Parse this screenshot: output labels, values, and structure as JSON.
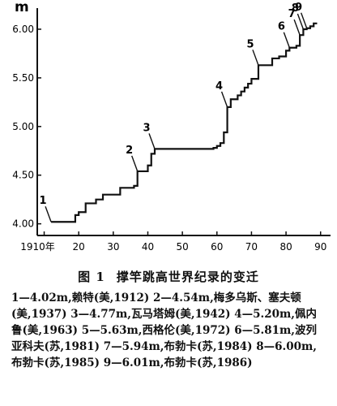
{
  "chart_data": {
    "type": "line",
    "step": true,
    "ylabel": "m",
    "xlabel": "",
    "x_tick_labels": [
      "1910年",
      "20",
      "30",
      "40",
      "50",
      "60",
      "70",
      "80",
      "90"
    ],
    "x_ticks": [
      10,
      20,
      30,
      40,
      50,
      60,
      70,
      80,
      90
    ],
    "y_tick_labels": [
      "4.00",
      "4.50",
      "5.00",
      "5.50",
      "6.00"
    ],
    "y_ticks": [
      4.0,
      4.5,
      5.0,
      5.5,
      6.0
    ],
    "xlim": [
      1908,
      1991
    ],
    "ylim": [
      3.88,
      6.1
    ],
    "grid": false,
    "series": [
      {
        "x": [
          1912,
          1919,
          1920,
          1922,
          1925,
          1927,
          1932,
          1936,
          1937,
          1940,
          1941,
          1942,
          1959,
          1960,
          1961,
          1962,
          1963,
          1964,
          1966,
          1967,
          1968,
          1969,
          1970,
          1972,
          1976,
          1978,
          1980,
          1981,
          1983,
          1984,
          1985,
          1986,
          1987,
          1988
        ],
        "y": [
          4.02,
          4.09,
          4.12,
          4.21,
          4.25,
          4.3,
          4.37,
          4.39,
          4.54,
          4.6,
          4.72,
          4.77,
          4.78,
          4.8,
          4.83,
          4.94,
          5.2,
          5.28,
          5.32,
          5.36,
          5.4,
          5.44,
          5.49,
          5.63,
          5.7,
          5.72,
          5.78,
          5.81,
          5.83,
          5.94,
          6.0,
          6.01,
          6.03,
          6.06
        ]
      }
    ],
    "x_end": 1989,
    "annotations": [
      {
        "label": "1",
        "x": 1912,
        "y": 4.02
      },
      {
        "label": "2",
        "x": 1937,
        "y": 4.54
      },
      {
        "label": "3",
        "x": 1942,
        "y": 4.77
      },
      {
        "label": "4",
        "x": 1963,
        "y": 5.2
      },
      {
        "label": "5",
        "x": 1972,
        "y": 5.63
      },
      {
        "label": "6",
        "x": 1981,
        "y": 5.81
      },
      {
        "label": "7",
        "x": 1984,
        "y": 5.94
      },
      {
        "label": "8",
        "x": 1985,
        "y": 6.0
      },
      {
        "label": "9",
        "x": 1986,
        "y": 6.01
      }
    ]
  },
  "caption": {
    "figure_number": "图 1",
    "title": "撑竿跳高世界纪录的变迁",
    "notes_text": "1—4.02m,赖特(美,1912) 2—4.54m,梅多乌斯、塞夫顿(美,1937) 3—4.77m,瓦马塔姆(美,1942) 4—5.20m,佩内鲁(美,1963) 5—5.63m,西格伦(美,1972) 6—5.81m,波列亚科夫(苏,1981) 7—5.94m,布勃卡(苏,1984) 8—6.00m,布勃卡(苏,1985) 9—6.01m,布勃卡(苏,1986)"
  }
}
